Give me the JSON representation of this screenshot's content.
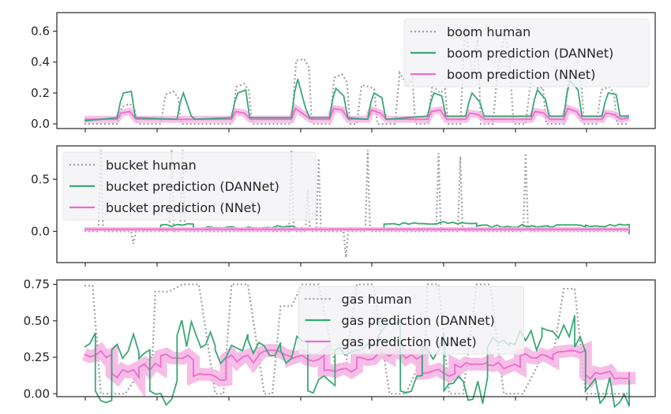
{
  "chart_data": [
    {
      "type": "line",
      "id": "boom",
      "ylim": [
        -0.03,
        0.72
      ],
      "yticks": [
        0.0,
        0.2,
        0.4,
        0.6
      ],
      "ytick_labels": [
        "0.0",
        "0.2",
        "0.4",
        "0.6"
      ],
      "legend": [
        "boom human",
        "boom prediction (DANNet)",
        "boom prediction (NNet)"
      ],
      "legend_position": "top-right",
      "series": [
        {
          "name": "boom human",
          "style": "dotted",
          "color": "#a0a0a0",
          "segments": [
            [
              0.06,
              0.11,
              0.13,
              0.0
            ],
            [
              0.14,
              0.19,
              0.21,
              0.0
            ],
            [
              0.27,
              0.24,
              0.26,
              0.0
            ],
            [
              0.38,
              0.41,
              0.42,
              0.0
            ],
            [
              0.45,
              0.3,
              0.32,
              0.0
            ],
            [
              0.5,
              0.25,
              0.24,
              0.0
            ],
            [
              0.57,
              0.33,
              0.25,
              0.0
            ],
            [
              0.63,
              0.25,
              0.2,
              0.0
            ],
            [
              0.69,
              0.62,
              0.3,
              0.0
            ],
            [
              0.75,
              0.36,
              0.6,
              0.0
            ],
            [
              0.81,
              0.26,
              0.23,
              0.0
            ],
            [
              0.88,
              0.3,
              0.32,
              0.0
            ],
            [
              0.94,
              0.22,
              0.24,
              0.0
            ]
          ]
        },
        {
          "name": "boom prediction (DANNet)",
          "color": "#3aa874",
          "segments": [
            [
              0.06,
              0.2,
              0.21,
              0.04
            ],
            [
              0.17,
              0.2,
              0.05,
              0.03
            ],
            [
              0.27,
              0.2,
              0.22,
              0.04
            ],
            [
              0.38,
              0.29,
              0.1,
              0.04
            ],
            [
              0.45,
              0.23,
              0.18,
              0.04
            ],
            [
              0.52,
              0.2,
              0.17,
              0.03
            ],
            [
              0.63,
              0.2,
              0.18,
              0.05
            ],
            [
              0.7,
              0.2,
              0.14,
              0.05
            ],
            [
              0.82,
              0.22,
              0.16,
              0.05
            ],
            [
              0.88,
              0.28,
              0.22,
              0.05
            ],
            [
              0.95,
              0.2,
              0.19,
              0.05
            ]
          ]
        },
        {
          "name": "boom prediction (NNet)",
          "color": "#ee6ccc",
          "segments": [
            [
              0.06,
              0.07,
              0.08,
              0.03
            ],
            [
              0.27,
              0.08,
              0.07,
              0.03
            ],
            [
              0.38,
              0.1,
              0.06,
              0.03
            ],
            [
              0.45,
              0.1,
              0.09,
              0.03
            ],
            [
              0.52,
              0.09,
              0.07,
              0.03
            ],
            [
              0.63,
              0.08,
              0.09,
              0.04
            ],
            [
              0.7,
              0.07,
              0.06,
              0.04
            ],
            [
              0.82,
              0.08,
              0.07,
              0.04
            ],
            [
              0.88,
              0.1,
              0.08,
              0.04
            ],
            [
              0.95,
              0.07,
              0.06,
              0.04
            ]
          ]
        }
      ]
    },
    {
      "type": "line",
      "id": "bucket",
      "ylim": [
        -0.3,
        0.82
      ],
      "yticks": [
        0.0,
        0.5
      ],
      "ytick_labels": [
        "0.0",
        "0.5"
      ],
      "legend": [
        "bucket human",
        "bucket prediction (DANNet)",
        "bucket prediction (NNet)"
      ],
      "legend_position": "top-left",
      "series": [
        {
          "name": "bucket human",
          "style": "dotted",
          "color": "#a0a0a0",
          "spikes": [
            [
              0.03,
              0.78
            ],
            [
              0.09,
              -0.12
            ],
            [
              0.16,
              0.78
            ],
            [
              0.18,
              0.78
            ],
            [
              0.38,
              0.78
            ],
            [
              0.41,
              0.4
            ],
            [
              0.43,
              0.7
            ],
            [
              0.48,
              -0.25
            ],
            [
              0.52,
              0.78
            ],
            [
              0.65,
              0.75
            ],
            [
              0.69,
              0.72
            ],
            [
              0.81,
              0.75
            ]
          ]
        },
        {
          "name": "bucket prediction (DANNet)",
          "color": "#3aa874",
          "segments": [
            [
              0.0,
              0.02
            ],
            [
              0.14,
              0.06
            ],
            [
              0.2,
              0.03
            ],
            [
              0.3,
              0.04
            ],
            [
              0.4,
              0.02
            ],
            [
              0.55,
              0.07
            ],
            [
              0.65,
              0.08
            ],
            [
              0.72,
              0.05
            ],
            [
              0.85,
              0.05
            ],
            [
              0.92,
              0.06
            ],
            [
              1.0,
              -0.02
            ]
          ]
        },
        {
          "name": "bucket prediction (NNet)",
          "color": "#ee6ccc",
          "level": 0.02
        }
      ]
    },
    {
      "type": "line",
      "id": "gas",
      "ylim": [
        -0.02,
        0.78
      ],
      "yticks": [
        0.0,
        0.25,
        0.5,
        0.75
      ],
      "ytick_labels": [
        "0.00",
        "0.25",
        "0.50",
        "0.75"
      ],
      "legend": [
        "gas human",
        "gas prediction (DANNet)",
        "gas prediction (NNet)"
      ],
      "legend_position": "top-center",
      "series": [
        {
          "name": "gas human",
          "style": "dotted",
          "color": "#a0a0a0",
          "segments": [
            [
              0.0,
              0.74
            ],
            [
              0.03,
              0.0
            ],
            [
              0.12,
              0.25
            ],
            [
              0.13,
              0.7
            ],
            [
              0.18,
              0.75
            ],
            [
              0.24,
              0.0
            ],
            [
              0.27,
              0.75
            ],
            [
              0.33,
              0.0
            ],
            [
              0.36,
              0.6
            ],
            [
              0.4,
              0.75
            ],
            [
              0.46,
              0.2
            ],
            [
              0.5,
              0.75
            ],
            [
              0.56,
              0.0
            ],
            [
              0.62,
              0.25
            ],
            [
              0.63,
              0.75
            ],
            [
              0.67,
              0.0
            ],
            [
              0.72,
              0.75
            ],
            [
              0.77,
              0.0
            ],
            [
              0.84,
              0.25
            ],
            [
              0.88,
              0.72
            ],
            [
              0.92,
              0.0
            ],
            [
              1.0,
              0.0
            ]
          ]
        },
        {
          "name": "gas prediction (DANNet)",
          "color": "#3aa874",
          "segments": [
            [
              0.0,
              0.32
            ],
            [
              0.02,
              0.02
            ],
            [
              0.05,
              0.3
            ],
            [
              0.1,
              0.24
            ],
            [
              0.12,
              0.02
            ],
            [
              0.17,
              0.4
            ],
            [
              0.24,
              0.3
            ],
            [
              0.3,
              0.37
            ],
            [
              0.36,
              0.3
            ],
            [
              0.41,
              0.02
            ],
            [
              0.46,
              0.3
            ],
            [
              0.54,
              0.4
            ],
            [
              0.58,
              0.02
            ],
            [
              0.62,
              0.33
            ],
            [
              0.66,
              0.02
            ],
            [
              0.74,
              0.32
            ],
            [
              0.78,
              0.35
            ],
            [
              0.84,
              0.45
            ],
            [
              0.9,
              0.32
            ],
            [
              0.92,
              0.02
            ],
            [
              1.0,
              0.01
            ]
          ]
        },
        {
          "name": "gas prediction (NNet)",
          "color": "#ee6ccc",
          "segments": [
            [
              0.0,
              0.27
            ],
            [
              0.05,
              0.14
            ],
            [
              0.1,
              0.18
            ],
            [
              0.14,
              0.26
            ],
            [
              0.2,
              0.12
            ],
            [
              0.26,
              0.24
            ],
            [
              0.32,
              0.27
            ],
            [
              0.38,
              0.24
            ],
            [
              0.44,
              0.16
            ],
            [
              0.5,
              0.25
            ],
            [
              0.56,
              0.26
            ],
            [
              0.62,
              0.14
            ],
            [
              0.68,
              0.2
            ],
            [
              0.74,
              0.2
            ],
            [
              0.8,
              0.26
            ],
            [
              0.86,
              0.27
            ],
            [
              0.92,
              0.13
            ],
            [
              1.0,
              0.15
            ]
          ]
        }
      ]
    }
  ]
}
